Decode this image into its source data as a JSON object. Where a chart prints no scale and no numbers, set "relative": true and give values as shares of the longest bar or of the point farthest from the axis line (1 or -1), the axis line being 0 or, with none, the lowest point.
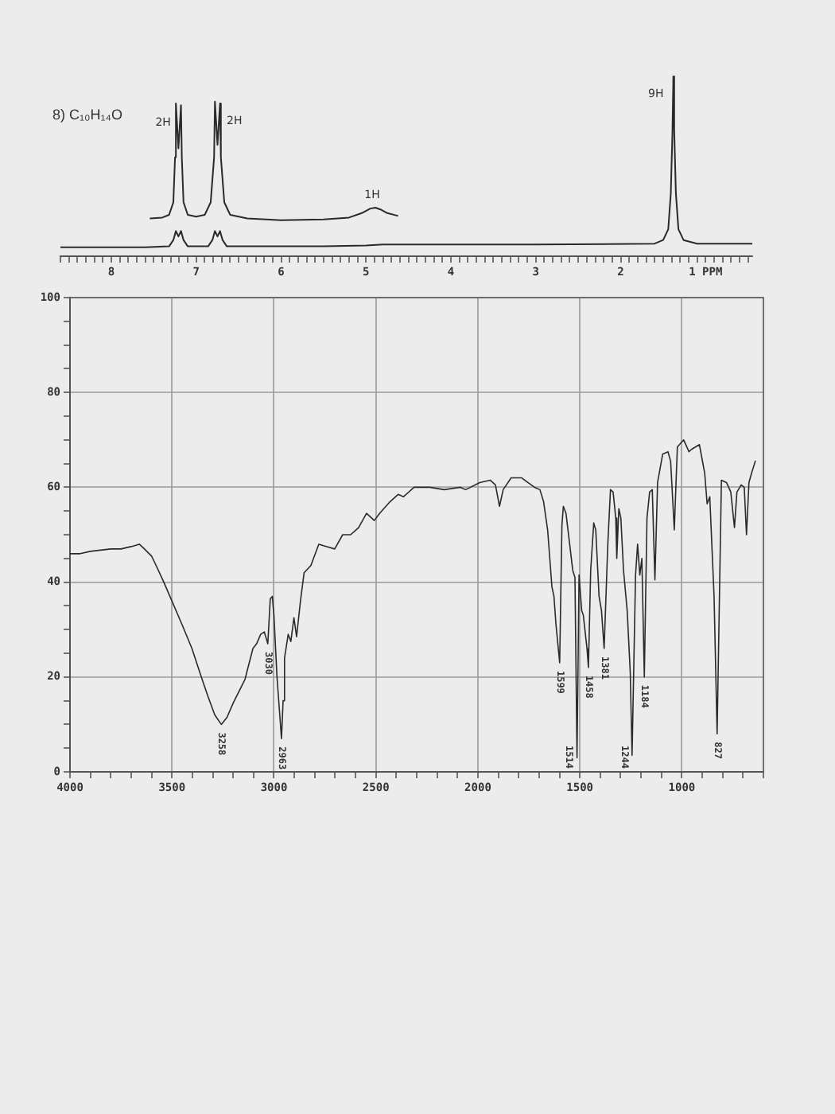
{
  "chart_data": [
    {
      "type": "line",
      "title": "8) C₁₀H₁₄O",
      "relative": true,
      "tick_labels": "x",
      "grid": false,
      "xlim": [
        8.6,
        0.45
      ],
      "xticks": [
        {
          "value": 8.6,
          "label": null
        },
        {
          "value": 8.5,
          "label": null
        },
        {
          "value": 8.4,
          "label": null
        },
        {
          "value": 8.3,
          "label": null
        },
        {
          "value": 8.2,
          "label": null
        },
        {
          "value": 8.1,
          "label": null
        },
        8,
        {
          "value": 7.9,
          "label": null
        },
        {
          "value": 7.8,
          "label": null
        },
        {
          "value": 7.7,
          "label": null
        },
        {
          "value": 7.6,
          "label": null
        },
        {
          "value": 7.5,
          "label": null
        },
        {
          "value": 7.4,
          "label": null
        },
        {
          "value": 7.3,
          "label": null
        },
        {
          "value": 7.2,
          "label": null
        },
        {
          "value": 7.1,
          "label": null
        },
        7,
        {
          "value": 6.9,
          "label": null
        },
        {
          "value": 6.8,
          "label": null
        },
        {
          "value": 6.7,
          "label": null
        },
        {
          "value": 6.6,
          "label": null
        },
        {
          "value": 6.5,
          "label": null
        },
        {
          "value": 6.4,
          "label": null
        },
        {
          "value": 6.3,
          "label": null
        },
        {
          "value": 6.2,
          "label": null
        },
        {
          "value": 6.1,
          "label": null
        },
        6,
        {
          "value": 5.9,
          "label": null
        },
        {
          "value": 5.8,
          "label": null
        },
        {
          "value": 5.7,
          "label": null
        },
        {
          "value": 5.6,
          "label": null
        },
        {
          "value": 5.5,
          "label": null
        },
        {
          "value": 5.4,
          "label": null
        },
        {
          "value": 5.3,
          "label": null
        },
        {
          "value": 5.2,
          "label": null
        },
        {
          "value": 5.1,
          "label": null
        },
        5,
        {
          "value": 4.9,
          "label": null
        },
        {
          "value": 4.8,
          "label": null
        },
        {
          "value": 4.7,
          "label": null
        },
        {
          "value": 4.6,
          "label": null
        },
        {
          "value": 4.5,
          "label": null
        },
        {
          "value": 4.4,
          "label": null
        },
        {
          "value": 4.3,
          "label": null
        },
        {
          "value": 4.2,
          "label": null
        },
        {
          "value": 4.1,
          "label": null
        },
        4,
        {
          "value": 3.9,
          "label": null
        },
        {
          "value": 3.8,
          "label": null
        },
        {
          "value": 3.7,
          "label": null
        },
        {
          "value": 3.6,
          "label": null
        },
        {
          "value": 3.5,
          "label": null
        },
        {
          "value": 3.4,
          "label": null
        },
        {
          "value": 3.3,
          "label": null
        },
        {
          "value": 3.2,
          "label": null
        },
        {
          "value": 3.1,
          "label": null
        },
        3,
        {
          "value": 2.9,
          "label": null
        },
        {
          "value": 2.8,
          "label": null
        },
        {
          "value": 2.7,
          "label": null
        },
        {
          "value": 2.6,
          "label": null
        },
        {
          "value": 2.5,
          "label": null
        },
        {
          "value": 2.4,
          "label": null
        },
        {
          "value": 2.3,
          "label": null
        },
        {
          "value": 2.2,
          "label": null
        },
        {
          "value": 2.1,
          "label": null
        },
        2,
        {
          "value": 1.9,
          "label": null
        },
        {
          "value": 1.8,
          "label": null
        },
        {
          "value": 1.7,
          "label": null
        },
        {
          "value": 1.6,
          "label": null
        },
        {
          "value": 1.5,
          "label": null
        },
        {
          "value": 1.4,
          "label": null
        },
        {
          "value": 1.3,
          "label": null
        },
        {
          "value": 1.2,
          "label": null
        },
        {
          "value": 1.1,
          "label": null
        },
        {
          "value": 1,
          "label": "1 PPM"
        },
        {
          "value": 0.9,
          "label": null
        },
        {
          "value": 0.8,
          "label": null
        },
        {
          "value": 0.7,
          "label": null
        },
        {
          "value": 0.6,
          "label": null
        },
        {
          "value": 0.5,
          "label": null
        }
      ],
      "series": [
        {
          "color": "#2a2a2a",
          "x": [
            8.6,
            8.0,
            7.6,
            7.32,
            7.27,
            7.24,
            7.21,
            7.18,
            7.15,
            7.1,
            6.86,
            6.81,
            6.78,
            6.75,
            6.72,
            6.69,
            6.64,
            5.5,
            5.0,
            4.8,
            3.0,
            1.6,
            1.5,
            1.44,
            1.41,
            1.39,
            1.38,
            1.37,
            1.35,
            1.32,
            1.26,
            1.1,
            0.45
          ],
          "values": [
            0.05,
            0.05,
            0.05,
            0.055,
            0.09,
            0.14,
            0.11,
            0.14,
            0.09,
            0.055,
            0.055,
            0.09,
            0.14,
            0.11,
            0.14,
            0.09,
            0.055,
            0.055,
            0.06,
            0.065,
            0.065,
            0.07,
            0.09,
            0.15,
            0.35,
            0.7,
            1,
            0.7,
            0.35,
            0.15,
            0.09,
            0.07,
            0.07
          ]
        },
        {
          "color": "#2a2a2a",
          "x": [
            7.54,
            7.4,
            7.32,
            7.27,
            7.25,
            7.24,
            7.21,
            7.18,
            7.17,
            7.15,
            7.1,
            7.0,
            6.9,
            6.83,
            6.79,
            6.78,
            6.75,
            6.72,
            6.71,
            6.67,
            6.6,
            6.4,
            6.0,
            5.5,
            5.2,
            5.05,
            4.95,
            4.89,
            4.83,
            4.75,
            4.63
          ],
          "values": [
            0.21,
            0.215,
            0.23,
            0.3,
            0.55,
            0.85,
            0.6,
            0.84,
            0.55,
            0.3,
            0.23,
            0.22,
            0.23,
            0.3,
            0.55,
            0.86,
            0.62,
            0.85,
            0.55,
            0.3,
            0.23,
            0.21,
            0.2,
            0.205,
            0.215,
            0.24,
            0.265,
            0.27,
            0.26,
            0.24,
            0.225
          ]
        }
      ],
      "annotations": [
        {
          "text": "2H",
          "x": 7.24,
          "y": 0.85
        },
        {
          "text": "2H",
          "x": 6.72,
          "y": 0.85
        },
        {
          "text": "1H",
          "x": 4.89,
          "y": 0.27
        },
        {
          "text": "9H",
          "x": 1.38,
          "y": 1
        }
      ]
    },
    {
      "type": "line",
      "grid": true,
      "xlim": [
        4000,
        600
      ],
      "ylim": [
        0,
        100
      ],
      "xticks": [
        4000,
        {
          "value": 3900,
          "label": null
        },
        {
          "value": 3800,
          "label": null
        },
        {
          "value": 3700,
          "label": null
        },
        {
          "value": 3600,
          "label": null
        },
        3500,
        {
          "value": 3400,
          "label": null
        },
        {
          "value": 3300,
          "label": null
        },
        {
          "value": 3200,
          "label": null
        },
        {
          "value": 3100,
          "label": null
        },
        3000,
        {
          "value": 2900,
          "label": null
        },
        {
          "value": 2800,
          "label": null
        },
        {
          "value": 2700,
          "label": null
        },
        {
          "value": 2600,
          "label": null
        },
        2500,
        {
          "value": 2400,
          "label": null
        },
        {
          "value": 2300,
          "label": null
        },
        {
          "value": 2200,
          "label": null
        },
        {
          "value": 2100,
          "label": null
        },
        2000,
        {
          "value": 1900,
          "label": null
        },
        {
          "value": 1800,
          "label": null
        },
        {
          "value": 1700,
          "label": null
        },
        {
          "value": 1600,
          "label": null
        },
        1500,
        {
          "value": 1400,
          "label": null
        },
        {
          "value": 1300,
          "label": null
        },
        {
          "value": 1200,
          "label": null
        },
        {
          "value": 1100,
          "label": null
        },
        1000,
        {
          "value": 900,
          "label": null
        },
        {
          "value": 800,
          "label": null
        },
        {
          "value": 700,
          "label": null
        },
        {
          "value": 600,
          "label": null
        }
      ],
      "yticks": [
        0,
        {
          "value": 5,
          "label": null
        },
        {
          "value": 10,
          "label": null
        },
        {
          "value": 15,
          "label": null
        },
        20,
        {
          "value": 25,
          "label": null
        },
        {
          "value": 30,
          "label": null
        },
        {
          "value": 35,
          "label": null
        },
        40,
        {
          "value": 45,
          "label": null
        },
        {
          "value": 50,
          "label": null
        },
        {
          "value": 55,
          "label": null
        },
        60,
        {
          "value": 65,
          "label": null
        },
        {
          "value": 70,
          "label": null
        },
        {
          "value": 75,
          "label": null
        },
        80,
        {
          "value": 85,
          "label": null
        },
        {
          "value": 90,
          "label": null
        },
        {
          "value": 95,
          "label": null
        },
        100
      ],
      "series": [
        {
          "color": "#2a2a2a",
          "x": [
            4000,
            3950,
            3900,
            3800,
            3750,
            3700,
            3660,
            3635,
            3600,
            3583,
            3540,
            3500,
            3450,
            3402,
            3360,
            3324,
            3290,
            3258,
            3230,
            3200,
            3142,
            3103,
            3085,
            3065,
            3047,
            3030,
            3018,
            3008,
            3000,
            2985,
            2963,
            2955,
            2948,
            2930,
            2917,
            2902,
            2889,
            2870,
            2852,
            2819,
            2780,
            2741,
            2702,
            2663,
            2624,
            2585,
            2546,
            2508,
            2482,
            2430,
            2391,
            2365,
            2313,
            2236,
            2165,
            2086,
            2060,
            1991,
            1940,
            1914,
            1894,
            1876,
            1837,
            1786,
            1755,
            1722,
            1696,
            1678,
            1658,
            1637,
            1627,
            1617,
            1599,
            1588,
            1581,
            1568,
            1550,
            1535,
            1524,
            1514,
            1504,
            1491,
            1483,
            1465,
            1458,
            1447,
            1432,
            1422,
            1406,
            1394,
            1381,
            1363,
            1350,
            1337,
            1324,
            1319,
            1309,
            1299,
            1286,
            1268,
            1253,
            1244,
            1227,
            1217,
            1206,
            1196,
            1184,
            1171,
            1158,
            1145,
            1132,
            1119,
            1094,
            1068,
            1055,
            1037,
            1022,
            991,
            965,
            953,
            914,
            888,
            876,
            863,
            842,
            827,
            806,
            781,
            760,
            742,
            730,
            709,
            694,
            683,
            671,
            658,
            640
          ],
          "values": [
            46,
            46,
            46.5,
            47,
            47,
            47.5,
            48,
            47,
            45.5,
            44,
            40,
            36,
            31,
            26,
            20.5,
            16,
            12,
            10,
            11.5,
            14.5,
            19.5,
            26,
            27,
            29,
            29.5,
            27,
            36.5,
            37,
            33,
            20,
            7,
            15,
            24,
            29,
            27.5,
            32.5,
            28.5,
            36,
            42,
            43.5,
            48,
            47.5,
            47,
            50,
            50,
            51.5,
            54.5,
            53,
            54.5,
            57,
            58.5,
            58,
            60,
            60,
            59.5,
            60,
            59.5,
            61,
            61.5,
            60.5,
            56,
            59.5,
            62,
            62,
            61,
            60,
            59.5,
            57,
            51,
            39,
            37,
            31,
            23,
            52,
            56,
            54.5,
            48,
            42.5,
            41,
            3,
            41.5,
            34,
            33,
            26,
            22,
            42.5,
            52.5,
            51,
            37,
            34,
            26,
            48,
            59.5,
            59,
            53.5,
            45,
            55.5,
            53.5,
            42.5,
            34,
            21,
            3.5,
            41.5,
            48,
            41.5,
            45,
            20,
            53.5,
            59,
            59.5,
            40.5,
            61,
            67,
            67.5,
            65.5,
            51,
            68.5,
            70,
            67.5,
            68,
            69,
            63,
            56.5,
            58,
            37,
            8,
            61.5,
            61,
            59,
            51.5,
            59,
            60.5,
            60,
            50,
            61,
            63,
            65.5
          ]
        }
      ],
      "annotations": [
        {
          "text": "3258",
          "x": 3258,
          "y": 10
        },
        {
          "text": "3030",
          "x": 3030,
          "y": 27
        },
        {
          "text": "2963",
          "x": 2963,
          "y": 7
        },
        {
          "text": "1599",
          "x": 1599,
          "y": 23
        },
        {
          "text": "1514",
          "x": 1514,
          "y": 3
        },
        {
          "text": "1458",
          "x": 1458,
          "y": 22
        },
        {
          "text": "1381",
          "x": 1381,
          "y": 26
        },
        {
          "text": "1244",
          "x": 1244,
          "y": 3.5
        },
        {
          "text": "1184",
          "x": 1184,
          "y": 20
        },
        {
          "text": "827",
          "x": 827,
          "y": 8
        }
      ]
    }
  ]
}
